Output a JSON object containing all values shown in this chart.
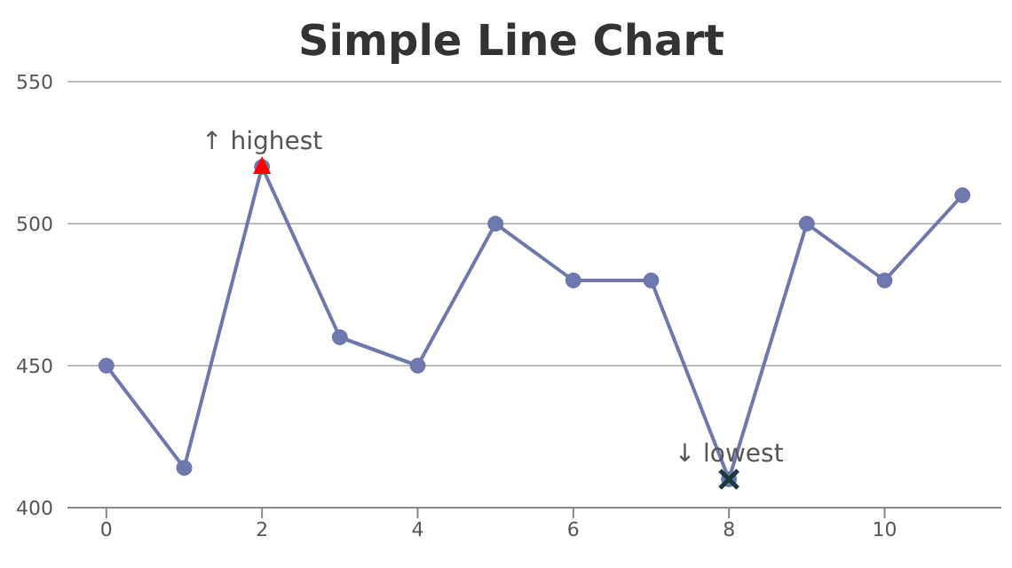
{
  "chart_data": {
    "type": "line",
    "title": "Simple Line Chart",
    "x": [
      0,
      1,
      2,
      3,
      4,
      5,
      6,
      7,
      8,
      9,
      10,
      11
    ],
    "series": [
      {
        "color": "#6d78ad",
        "marker": "circle",
        "values": [
          450,
          414,
          520,
          460,
          450,
          500,
          480,
          480,
          410,
          500,
          480,
          510
        ]
      },
      {
        "type": "scatter",
        "color": "#ff0000",
        "marker": "triangle",
        "x": [
          2
        ],
        "values": [
          520
        ]
      },
      {
        "type": "scatter",
        "color": "#1a3a3a",
        "marker": "cross",
        "x": [
          8
        ],
        "values": [
          410
        ]
      }
    ],
    "xlim": [
      -0.5,
      11.5
    ],
    "xticks": [
      0,
      2,
      4,
      6,
      8,
      10
    ],
    "ylim": [
      400,
      550
    ],
    "yticks": [
      400,
      450,
      500,
      550
    ],
    "grid": "y",
    "legend": false,
    "annotations": [
      {
        "text": "↑ highest",
        "x": 2,
        "y": 520
      },
      {
        "text": "↓ lowest",
        "x": 8,
        "y": 410
      }
    ]
  }
}
